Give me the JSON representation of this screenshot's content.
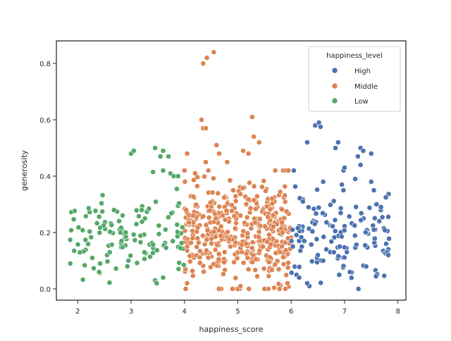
{
  "chart_data": {
    "type": "scatter",
    "title": "",
    "xlabel": "happiness_score",
    "ylabel": "generosity",
    "xlim": [
      1.6,
      8.15
    ],
    "ylim": [
      -0.04,
      0.88
    ],
    "xticks": [
      2,
      3,
      4,
      5,
      6,
      7,
      8
    ],
    "yticks": [
      0.0,
      0.2,
      0.4,
      0.6,
      0.8
    ],
    "xtick_labels": [
      "2",
      "3",
      "4",
      "5",
      "6",
      "7",
      "8"
    ],
    "ytick_labels": [
      "0.0",
      "0.2",
      "0.4",
      "0.6",
      "0.8"
    ],
    "grid": false,
    "legend": {
      "title": "happiness_level",
      "placement": "top-right",
      "entries": [
        "High",
        "Middle",
        "Low"
      ]
    },
    "series": [
      {
        "name": "High",
        "color": "#4c72b0",
        "x_range": [
          6.0,
          7.85
        ],
        "y_range": [
          0.0,
          0.59
        ],
        "points": [
          [
            6.45,
            0.58
          ],
          [
            6.52,
            0.59
          ],
          [
            6.55,
            0.575
          ],
          [
            6.3,
            0.52
          ],
          [
            6.83,
            0.5
          ],
          [
            6.88,
            0.52
          ],
          [
            7.3,
            0.5
          ],
          [
            7.35,
            0.49
          ],
          [
            7.5,
            0.48
          ],
          [
            7.25,
            0.47
          ],
          [
            7.3,
            0.44
          ],
          [
            7.0,
            0.43
          ],
          [
            6.05,
            0.42
          ],
          [
            6.6,
            0.38
          ],
          [
            6.95,
            0.37
          ],
          [
            6.98,
            0.35
          ],
          [
            7.2,
            0.39
          ],
          [
            7.5,
            0.38
          ],
          [
            7.55,
            0.35
          ],
          [
            7.6,
            0.3
          ],
          [
            7.65,
            0.24
          ],
          [
            7.55,
            0.21
          ],
          [
            7.78,
            0.16
          ],
          [
            7.8,
            0.13
          ],
          [
            7.82,
            0.12
          ],
          [
            7.1,
            0.06
          ],
          [
            6.9,
            0.05
          ],
          [
            6.1,
            0.05
          ],
          [
            6.15,
            0.04
          ],
          [
            6.3,
            0.02
          ],
          [
            6.6,
            0.1
          ],
          [
            6.8,
            0.13
          ],
          [
            6.5,
            0.12
          ],
          [
            6.2,
            0.15
          ]
        ],
        "count_per_band": 120
      },
      {
        "name": "Middle",
        "color": "#dd8452",
        "x_range": [
          4.0,
          6.0
        ],
        "y_range": [
          0.0,
          0.84
        ],
        "points": [
          [
            4.55,
            0.84
          ],
          [
            4.42,
            0.82
          ],
          [
            4.35,
            0.8
          ],
          [
            4.32,
            0.6
          ],
          [
            5.27,
            0.61
          ],
          [
            4.35,
            0.57
          ],
          [
            4.4,
            0.57
          ],
          [
            5.3,
            0.54
          ],
          [
            5.4,
            0.52
          ],
          [
            5.1,
            0.49
          ],
          [
            5.2,
            0.48
          ],
          [
            4.6,
            0.51
          ],
          [
            4.65,
            0.48
          ],
          [
            4.05,
            0.48
          ],
          [
            4.4,
            0.45
          ],
          [
            4.8,
            0.45
          ],
          [
            5.9,
            0.42
          ],
          [
            5.95,
            0.42
          ],
          [
            4.2,
            0.41
          ],
          [
            4.05,
            0.02
          ],
          [
            4.9,
            0.0
          ],
          [
            5.0,
            0.0
          ],
          [
            5.5,
            0.0
          ],
          [
            5.78,
            0.0
          ],
          [
            5.93,
            0.02
          ],
          [
            5.05,
            0.01
          ]
        ],
        "count_per_band": 420
      },
      {
        "name": "Low",
        "color": "#55a868",
        "x_range": [
          1.85,
          4.0
        ],
        "y_range": [
          0.02,
          0.5
        ],
        "points": [
          [
            1.86,
            0.09
          ],
          [
            2.4,
            0.06
          ],
          [
            2.42,
            0.09
          ],
          [
            2.55,
            0.12
          ],
          [
            2.6,
            0.13
          ],
          [
            2.68,
            0.28
          ],
          [
            2.8,
            0.2
          ],
          [
            2.82,
            0.17
          ],
          [
            2.9,
            0.2
          ],
          [
            2.93,
            0.08
          ],
          [
            2.95,
            0.1
          ],
          [
            3.0,
            0.48
          ],
          [
            3.05,
            0.49
          ],
          [
            3.45,
            0.5
          ],
          [
            3.6,
            0.49
          ],
          [
            3.7,
            0.47
          ],
          [
            3.55,
            0.47
          ],
          [
            3.6,
            0.42
          ],
          [
            3.8,
            0.4
          ],
          [
            3.88,
            0.4
          ],
          [
            3.45,
            0.03
          ],
          [
            3.48,
            0.02
          ],
          [
            3.6,
            0.04
          ],
          [
            3.1,
            0.23
          ],
          [
            3.2,
            0.28
          ],
          [
            3.25,
            0.13
          ]
        ],
        "count_per_band": 110
      }
    ]
  }
}
